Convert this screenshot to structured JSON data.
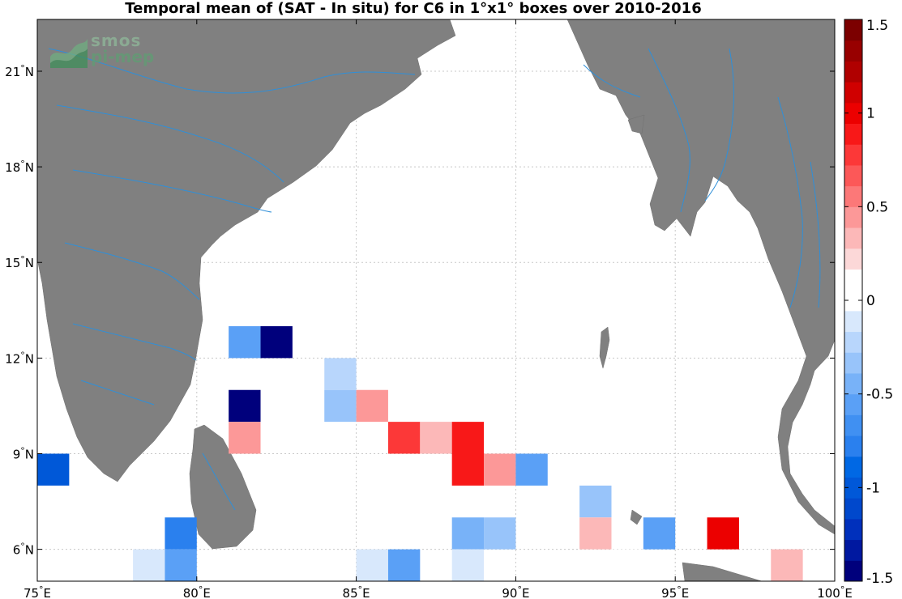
{
  "title": "Temporal mean of (SAT - In situ) for C6 in 1°x1° boxes over 2010-2016",
  "logo": {
    "line1": "smos",
    "line2": "pi-mep"
  },
  "colors": {
    "land": "#808080",
    "river": "#2f8fd8",
    "grid": "#c8c8c8",
    "ocean": "#ffffff"
  },
  "chart_data": {
    "type": "heatmap",
    "xlim": [
      75,
      100
    ],
    "ylim": [
      5,
      22.5
    ],
    "clim": [
      -1.5,
      1.5
    ],
    "colorbar": {
      "ticks": [
        {
          "value": 1.5,
          "label": "1.5"
        },
        {
          "value": 1,
          "label": "1"
        },
        {
          "value": 0.5,
          "label": "0.5"
        },
        {
          "value": 0,
          "label": "0"
        },
        {
          "value": -0.5,
          "label": "-0.5"
        },
        {
          "value": -1,
          "label": "-1"
        },
        {
          "value": -1.5,
          "label": "-1.5"
        }
      ],
      "colors": [
        "#00007c",
        "#0018a0",
        "#0030bc",
        "#0048cc",
        "#0058d8",
        "#0068e4",
        "#2a80ee",
        "#4090f2",
        "#5aa0f6",
        "#78b2f8",
        "#98c4fa",
        "#b8d6fc",
        "#d8e8fc",
        "#ffffff",
        "#ffffff",
        "#fcd8d8",
        "#fcb8b8",
        "#fc9898",
        "#fc7878",
        "#fc5858",
        "#fc3838",
        "#f81818",
        "#ec0000",
        "#d00000",
        "#b00000",
        "#980000",
        "#7c0000"
      ]
    },
    "xticks": [
      {
        "value": 75,
        "deg": "75",
        "hem": "E"
      },
      {
        "value": 80,
        "deg": "80",
        "hem": "E"
      },
      {
        "value": 85,
        "deg": "85",
        "hem": "E"
      },
      {
        "value": 90,
        "deg": "90",
        "hem": "E"
      },
      {
        "value": 95,
        "deg": "95",
        "hem": "E"
      },
      {
        "value": 100,
        "deg": "100",
        "hem": "E"
      }
    ],
    "yticks": [
      {
        "value": 6,
        "deg": "6",
        "hem": "N"
      },
      {
        "value": 9,
        "deg": "9",
        "hem": "N"
      },
      {
        "value": 12,
        "deg": "12",
        "hem": "N"
      },
      {
        "value": 15,
        "deg": "15",
        "hem": "N"
      },
      {
        "value": 18,
        "deg": "18",
        "hem": "N"
      },
      {
        "value": 21,
        "deg": "21",
        "hem": "N"
      }
    ],
    "cells": [
      {
        "lon": 81,
        "lat": 12,
        "value": -0.55
      },
      {
        "lon": 82,
        "lat": 12,
        "value": -1.5
      },
      {
        "lon": 84,
        "lat": 11,
        "value": -0.18
      },
      {
        "lon": 81,
        "lat": 10,
        "value": -1.5
      },
      {
        "lon": 84,
        "lat": 10,
        "value": -0.35
      },
      {
        "lon": 85,
        "lat": 10,
        "value": 0.45
      },
      {
        "lon": 86,
        "lat": 10,
        "value": 0.15
      },
      {
        "lon": 81,
        "lat": 9,
        "value": 0.45
      },
      {
        "lon": 86,
        "lat": 9,
        "value": 0.75
      },
      {
        "lon": 87,
        "lat": 9,
        "value": 0.3
      },
      {
        "lon": 88,
        "lat": 9,
        "value": 0.9
      },
      {
        "lon": 75,
        "lat": 8,
        "value": -0.95
      },
      {
        "lon": 88,
        "lat": 8,
        "value": 0.9
      },
      {
        "lon": 89,
        "lat": 8,
        "value": 0.45
      },
      {
        "lon": 90,
        "lat": 8,
        "value": -0.55
      },
      {
        "lon": 92,
        "lat": 7,
        "value": -0.35
      },
      {
        "lon": 79,
        "lat": 6,
        "value": -0.8
      },
      {
        "lon": 88,
        "lat": 6,
        "value": -0.5
      },
      {
        "lon": 89,
        "lat": 6,
        "value": -0.35
      },
      {
        "lon": 92,
        "lat": 6,
        "value": 0.3
      },
      {
        "lon": 94,
        "lat": 6,
        "value": -0.55
      },
      {
        "lon": 96,
        "lat": 6,
        "value": 1.0
      },
      {
        "lon": 78,
        "lat": 5,
        "value": -0.15
      },
      {
        "lon": 79,
        "lat": 5,
        "value": -0.6
      },
      {
        "lon": 85,
        "lat": 5,
        "value": -0.15
      },
      {
        "lon": 86,
        "lat": 5,
        "value": -0.6
      },
      {
        "lon": 88,
        "lat": 5,
        "value": -0.15
      },
      {
        "lon": 93,
        "lat": 5,
        "value": 0.15
      },
      {
        "lon": 98,
        "lat": 5,
        "value": 0.3
      }
    ]
  }
}
